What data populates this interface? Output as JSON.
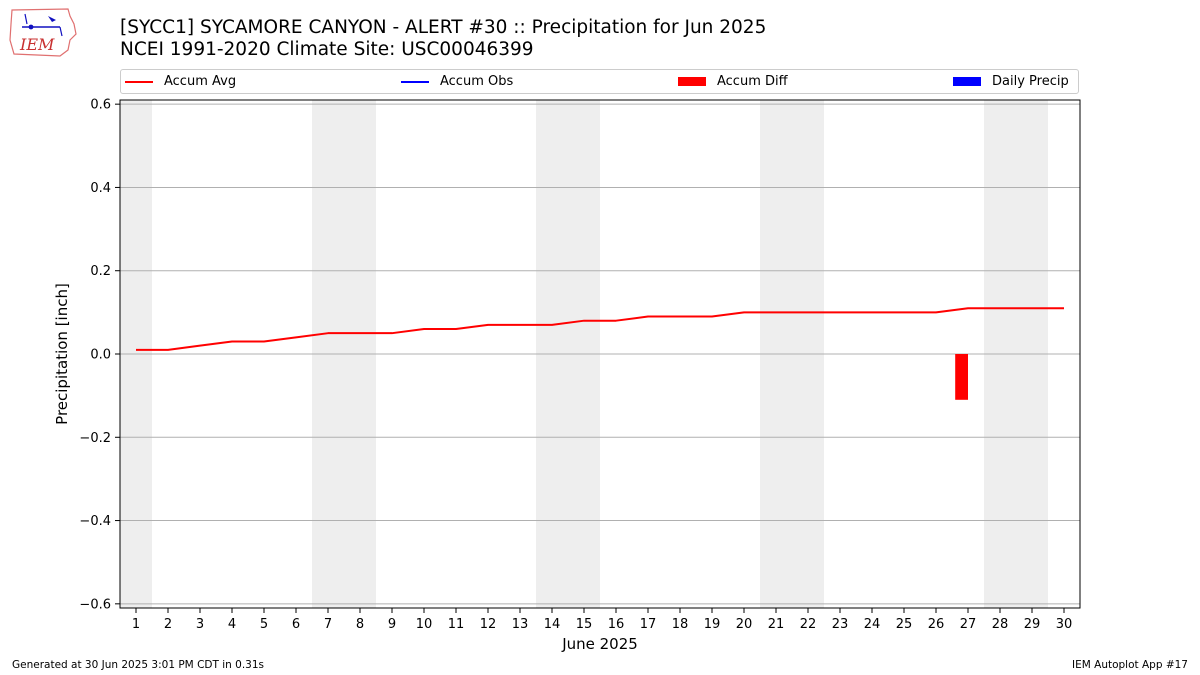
{
  "logo": {
    "text": "IEM",
    "icon": "iem-logo-iowa-weather-station"
  },
  "title": {
    "line1": "[SYCC1] SYCAMORE CANYON - ALERT #30 :: Precipitation for Jun 2025",
    "line2": "NCEI 1991-2020 Climate Site: USC00046399"
  },
  "legend": {
    "placement": "top, above plot",
    "items": [
      {
        "label": "Accum Avg",
        "kind": "line",
        "color": "#ff0000"
      },
      {
        "label": "Accum Obs",
        "kind": "line",
        "color": "#0000ff"
      },
      {
        "label": "Accum Diff",
        "kind": "patch",
        "color": "#ff0000"
      },
      {
        "label": "Daily Precip",
        "kind": "patch",
        "color": "#0000ff"
      }
    ]
  },
  "chart_data": {
    "type": "line",
    "xlabel": "June 2025",
    "ylabel": "Precipitation [inch]",
    "ylim": [
      -0.61,
      0.61
    ],
    "yticks": [
      -0.6,
      -0.4,
      -0.2,
      0.0,
      0.2,
      0.4,
      0.6
    ],
    "ytick_labels": [
      "−0.6",
      "−0.4",
      "−0.2",
      "0.0",
      "0.2",
      "0.4",
      "0.6"
    ],
    "grid": "horizontal",
    "x": [
      1,
      2,
      3,
      4,
      5,
      6,
      7,
      8,
      9,
      10,
      11,
      12,
      13,
      14,
      15,
      16,
      17,
      18,
      19,
      20,
      21,
      22,
      23,
      24,
      25,
      26,
      27,
      28,
      29,
      30
    ],
    "xtick_labels": [
      "1",
      "2",
      "3",
      "4",
      "5",
      "6",
      "7",
      "8",
      "9",
      "10",
      "11",
      "12",
      "13",
      "14",
      "15",
      "16",
      "17",
      "18",
      "19",
      "20",
      "21",
      "22",
      "23",
      "24",
      "25",
      "26",
      "27",
      "28",
      "29",
      "30"
    ],
    "weekend_shading": [
      [
        0.5,
        1.5
      ],
      [
        6.5,
        8.5
      ],
      [
        13.5,
        15.5
      ],
      [
        20.5,
        22.5
      ],
      [
        27.5,
        29.5
      ]
    ],
    "weekend_color": "#eeeeee",
    "series": [
      {
        "name": "Accum Avg",
        "kind": "line",
        "color": "#ff0000",
        "values": [
          0.01,
          0.01,
          0.02,
          0.03,
          0.03,
          0.04,
          0.05,
          0.05,
          0.05,
          0.06,
          0.06,
          0.07,
          0.07,
          0.07,
          0.08,
          0.08,
          0.09,
          0.09,
          0.09,
          0.1,
          0.1,
          0.1,
          0.1,
          0.1,
          0.1,
          0.1,
          0.11,
          0.11,
          0.11,
          0.11
        ]
      },
      {
        "name": "Accum Diff",
        "kind": "bar",
        "color": "#ff0000",
        "points": [
          {
            "x": 26.8,
            "value": -0.11
          }
        ]
      }
    ]
  },
  "footer": {
    "left": "Generated at 30 Jun 2025 3:01 PM CDT in 0.31s",
    "right": "IEM Autoplot App #17"
  }
}
